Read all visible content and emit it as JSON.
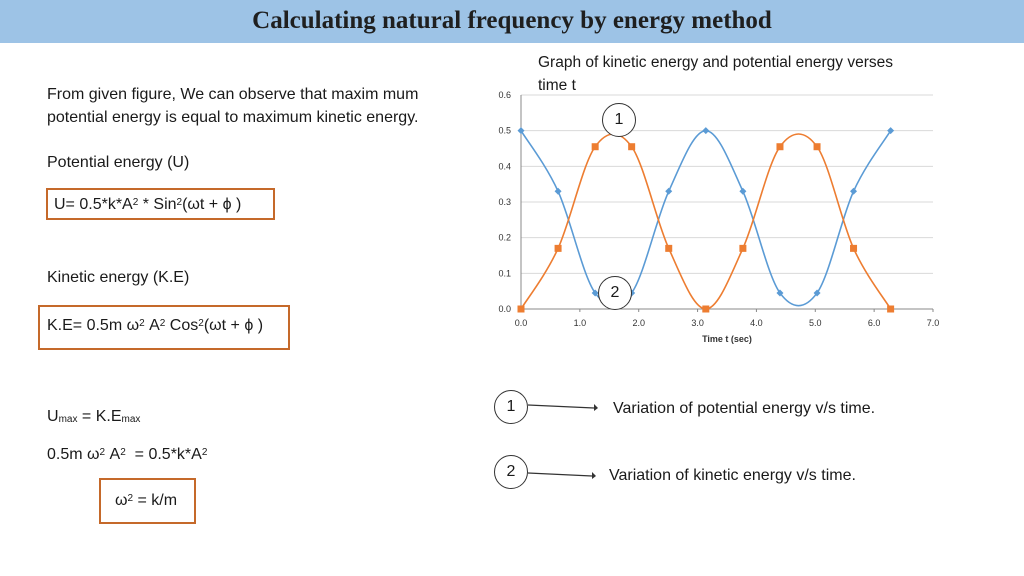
{
  "header": {
    "title": "Calculating natural frequency by energy method"
  },
  "left": {
    "intro_line1": "From given figure, We can observe that maxim mum",
    "intro_line2": "potential energy is equal to maximum kinetic energy.",
    "pe_heading": "Potential energy (U)",
    "pe_formula": {
      "a": "U= 0.5*k*A",
      "sup1": "2",
      "b": " * Sin",
      "sup2": "2",
      "c": "(ωt + ϕ )"
    },
    "ke_heading": "Kinetic energy (K.E)",
    "ke_formula": {
      "a": "K.E= 0.5m ω",
      "sup1": "2",
      "b": " A",
      "sup2": "2",
      "c": " Cos",
      "sup3": "2",
      "d": "(ωt + ϕ )"
    },
    "umax_eq": {
      "a": "U",
      "sub1": "max",
      "b": " = K.E",
      "sub2": "max"
    },
    "energy_eq": {
      "a": "0.5m ω",
      "sup1": "2",
      "b": " A",
      "sup2": "2",
      "c": "  = 0.5*k*A",
      "sup3": "2"
    },
    "omega_eq": {
      "a": "ω",
      "sup1": "2",
      "b": " = k/m"
    }
  },
  "chart_data": {
    "type": "line",
    "title": "Graph of kinetic energy and potential energy verses time t",
    "title_line1": "Graph of kinetic energy and potential energy verses",
    "title_line2": "time t",
    "xlabel": "Time t (sec)",
    "ylabel": "",
    "xlim": [
      0,
      7
    ],
    "ylim": [
      0,
      0.6
    ],
    "xticks": [
      "0.0",
      "1.0",
      "2.0",
      "3.0",
      "4.0",
      "5.0",
      "6.0",
      "7.0"
    ],
    "yticks": [
      "0.0",
      "0.1",
      "0.2",
      "0.3",
      "0.4",
      "0.5",
      "0.6"
    ],
    "grid": true,
    "series": [
      {
        "color": "#5b9bd5",
        "marker": "diamond",
        "x": [
          0.0,
          0.63,
          1.26,
          1.88,
          2.51,
          3.14,
          3.77,
          4.4,
          5.03,
          5.65,
          6.28
        ],
        "values": [
          0.5,
          0.33,
          0.045,
          0.045,
          0.33,
          0.5,
          0.33,
          0.045,
          0.045,
          0.33,
          0.5
        ]
      },
      {
        "color": "#ed7d31",
        "marker": "square",
        "x": [
          0.0,
          0.63,
          1.26,
          1.88,
          2.51,
          3.14,
          3.77,
          4.4,
          5.03,
          5.65,
          6.28
        ],
        "values": [
          0.0,
          0.17,
          0.455,
          0.455,
          0.17,
          0.0,
          0.17,
          0.455,
          0.455,
          0.17,
          0.0
        ]
      }
    ],
    "annotations": [
      {
        "label": "1"
      },
      {
        "label": "2"
      }
    ]
  },
  "legend_notes": [
    {
      "num": "1",
      "text": "Variation of potential energy v/s time."
    },
    {
      "num": "2",
      "text": "Variation of kinetic energy v/s time."
    }
  ]
}
